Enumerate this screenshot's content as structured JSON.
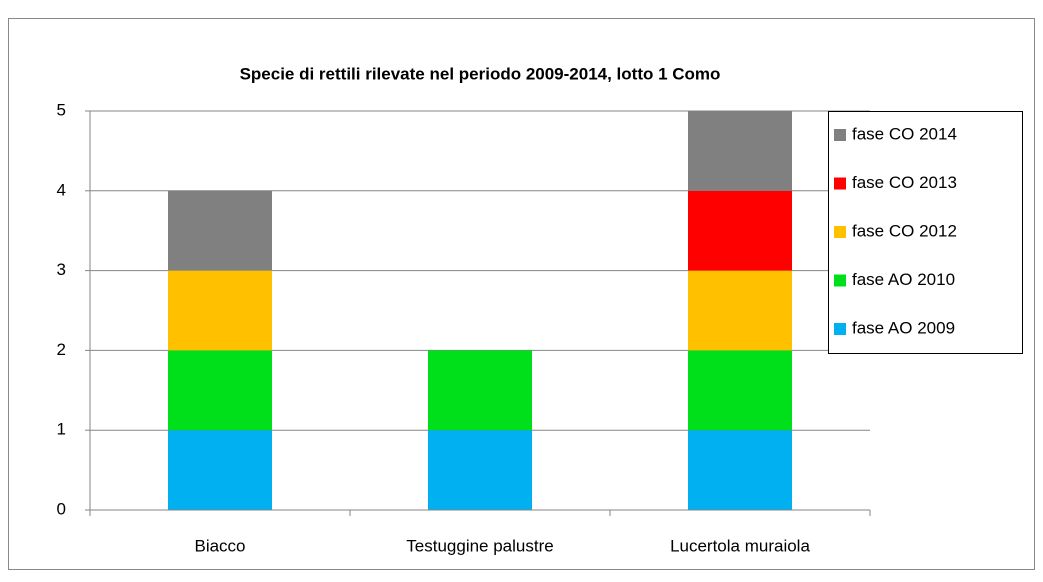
{
  "chart_data": {
    "type": "stacked_bar",
    "title": "Specie di rettili rilevate nel periodo 2009-2014, lotto 1 Como",
    "categories": [
      "Biacco",
      "Testuggine palustre",
      "Lucertola muraiola"
    ],
    "series": [
      {
        "name": "fase AO 2009",
        "color": "#00b0f0",
        "values": [
          1,
          1,
          1
        ]
      },
      {
        "name": "fase AO 2010",
        "color": "#00e01a",
        "values": [
          1,
          1,
          1
        ]
      },
      {
        "name": "fase CO 2012",
        "color": "#ffc000",
        "values": [
          1,
          0,
          1
        ]
      },
      {
        "name": "fase CO 2013",
        "color": "#ff0000",
        "values": [
          0,
          0,
          1
        ]
      },
      {
        "name": "fase CO 2014",
        "color": "#808080",
        "values": [
          1,
          0,
          1
        ]
      }
    ],
    "ylim": [
      0,
      5
    ],
    "yticks": [
      0,
      1,
      2,
      3,
      4,
      5
    ],
    "grid": true,
    "legend": "right"
  }
}
